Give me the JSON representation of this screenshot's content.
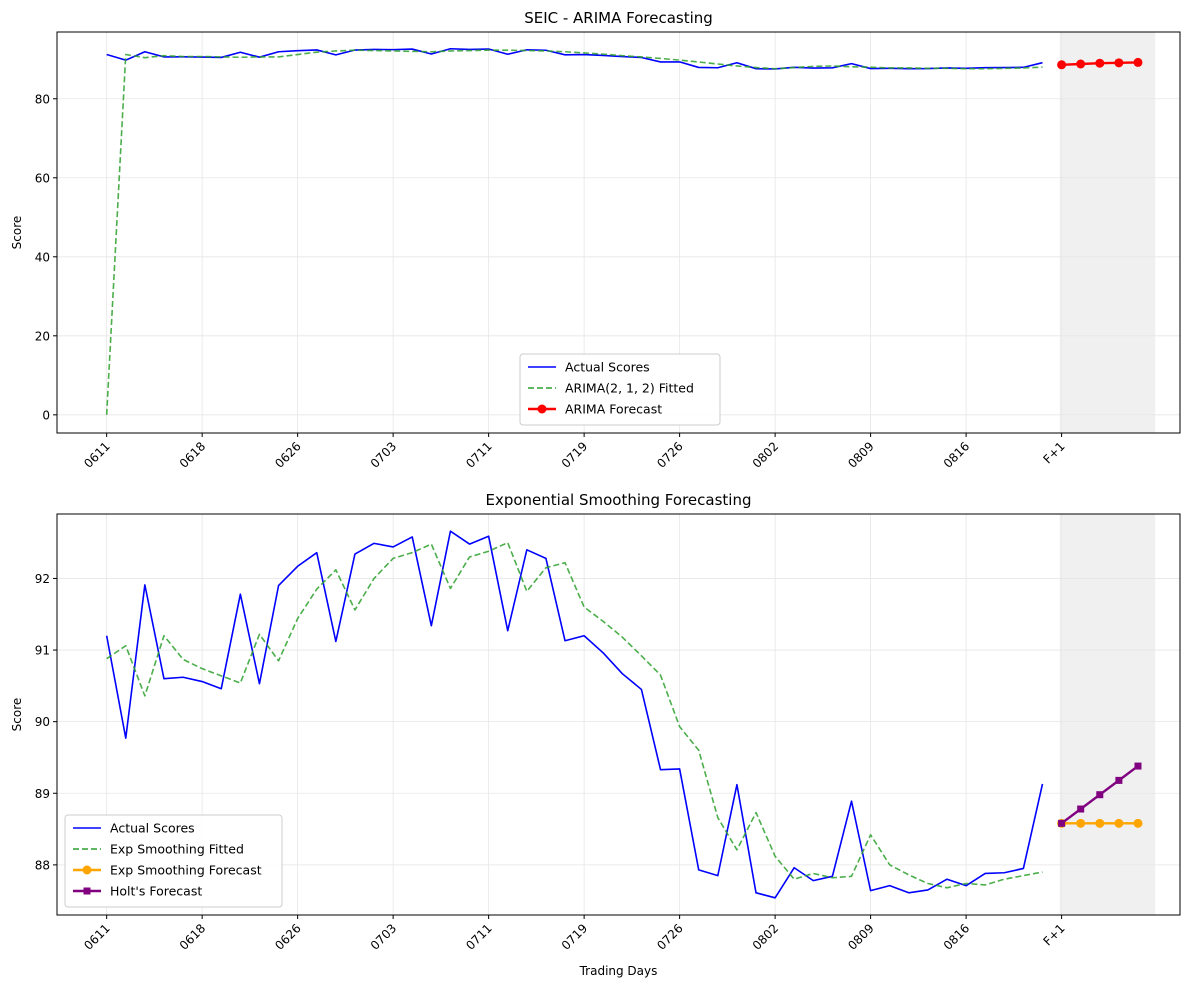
{
  "chart_data": [
    {
      "type": "line",
      "title": "SEIC - ARIMA Forecasting",
      "xlabel": "",
      "ylabel": "Score",
      "ylim": [
        -4.6,
        96.9
      ],
      "yticks": [
        0,
        20,
        40,
        60,
        80
      ],
      "xtick_labels": [
        "0611",
        "0618",
        "0626",
        "0703",
        "0711",
        "0719",
        "0726",
        "0802",
        "0809",
        "0816",
        "F+1"
      ],
      "xtick_indices": [
        0,
        5,
        10,
        15,
        20,
        25,
        30,
        35,
        40,
        45,
        50
      ],
      "forecast_region": [
        49.9,
        54.9
      ],
      "series": [
        {
          "name": "Actual Scores",
          "kind": "actual",
          "color": "#0000ff",
          "x_start": 0,
          "values": [
            91.2,
            89.77,
            91.91,
            90.6,
            90.62,
            90.56,
            90.46,
            91.78,
            90.53,
            91.9,
            92.17,
            92.36,
            91.12,
            92.34,
            92.49,
            92.44,
            92.58,
            91.34,
            92.66,
            92.48,
            92.59,
            91.27,
            92.4,
            92.28,
            91.13,
            91.2,
            90.96,
            90.67,
            90.45,
            89.33,
            89.34,
            87.93,
            87.85,
            89.12,
            87.61,
            87.54,
            87.96,
            87.78,
            87.84,
            88.89,
            87.64,
            87.71,
            87.61,
            87.65,
            87.8,
            87.71,
            87.88,
            87.89,
            87.95,
            89.13
          ]
        },
        {
          "name": "ARIMA(2, 1, 2) Fitted",
          "kind": "fitted",
          "color": "#2ca02c",
          "x_start": 0,
          "values": [
            0.0,
            91.2,
            90.4,
            90.9,
            90.7,
            90.7,
            90.6,
            90.5,
            90.6,
            90.6,
            91.2,
            91.8,
            92.1,
            92.3,
            92.2,
            92.1,
            92.0,
            91.9,
            92.1,
            92.2,
            92.3,
            92.3,
            92.2,
            92.1,
            91.9,
            91.6,
            91.3,
            90.9,
            90.6,
            90.2,
            89.8,
            89.3,
            88.8,
            88.3,
            87.9,
            87.6,
            87.9,
            88.2,
            88.3,
            88.1,
            88.0,
            87.8,
            87.8,
            87.7,
            87.7,
            87.6,
            87.6,
            87.7,
            87.8,
            88.0
          ]
        },
        {
          "name": "ARIMA Forecast",
          "kind": "forecast",
          "color": "#ff0000",
          "marker": "circle",
          "x_start": 50,
          "values": [
            88.6,
            88.8,
            89.0,
            89.1,
            89.2
          ]
        }
      ],
      "legend": {
        "placement": "lower center",
        "entries": [
          "Actual Scores",
          "ARIMA(2, 1, 2) Fitted",
          "ARIMA Forecast"
        ]
      }
    },
    {
      "type": "line",
      "title": "Exponential Smoothing Forecasting",
      "xlabel": "Trading Days",
      "ylabel": "Score",
      "ylim": [
        87.3,
        92.9
      ],
      "yticks": [
        88,
        89,
        90,
        91,
        92
      ],
      "xtick_labels": [
        "0611",
        "0618",
        "0626",
        "0703",
        "0711",
        "0719",
        "0726",
        "0802",
        "0809",
        "0816",
        "F+1"
      ],
      "xtick_indices": [
        0,
        5,
        10,
        15,
        20,
        25,
        30,
        35,
        40,
        45,
        50
      ],
      "forecast_region": [
        49.9,
        54.9
      ],
      "series": [
        {
          "name": "Actual Scores",
          "kind": "actual",
          "color": "#0000ff",
          "x_start": 0,
          "values": [
            91.2,
            89.77,
            91.91,
            90.6,
            90.62,
            90.56,
            90.46,
            91.78,
            90.53,
            91.9,
            92.17,
            92.36,
            91.12,
            92.34,
            92.49,
            92.44,
            92.58,
            91.34,
            92.66,
            92.48,
            92.59,
            91.27,
            92.4,
            92.28,
            91.13,
            91.2,
            90.96,
            90.67,
            90.45,
            89.33,
            89.34,
            87.93,
            87.85,
            89.12,
            87.61,
            87.54,
            87.96,
            87.78,
            87.84,
            88.89,
            87.64,
            87.71,
            87.61,
            87.65,
            87.8,
            87.71,
            87.88,
            87.89,
            87.95,
            89.13
          ]
        },
        {
          "name": "Exp Smoothing Fitted",
          "kind": "fitted",
          "color": "#2ca02c",
          "x_start": 0,
          "values": [
            90.88,
            91.06,
            90.36,
            91.2,
            90.87,
            90.74,
            90.64,
            90.54,
            91.22,
            90.85,
            91.44,
            91.85,
            92.12,
            91.56,
            92.0,
            92.28,
            92.36,
            92.48,
            91.86,
            92.3,
            92.38,
            92.5,
            91.82,
            92.15,
            92.22,
            91.6,
            91.4,
            91.18,
            90.92,
            90.65,
            89.93,
            89.6,
            88.66,
            88.21,
            88.73,
            88.12,
            87.8,
            87.88,
            87.82,
            87.84,
            88.42,
            88.0,
            87.86,
            87.74,
            87.68,
            87.74,
            87.72,
            87.8,
            87.85,
            87.9
          ]
        },
        {
          "name": "Exp Smoothing Forecast",
          "kind": "forecast",
          "color": "#ffa500",
          "marker": "circle",
          "x_start": 50,
          "values": [
            88.58,
            88.58,
            88.58,
            88.58,
            88.58
          ]
        },
        {
          "name": "Holt's Forecast",
          "kind": "forecast",
          "color": "#800080",
          "marker": "square",
          "x_start": 50,
          "values": [
            88.58,
            88.78,
            88.98,
            89.18,
            89.38
          ]
        }
      ],
      "legend": {
        "placement": "lower left",
        "entries": [
          "Actual Scores",
          "Exp Smoothing Fitted",
          "Exp Smoothing Forecast",
          "Holt's Forecast"
        ]
      }
    }
  ]
}
